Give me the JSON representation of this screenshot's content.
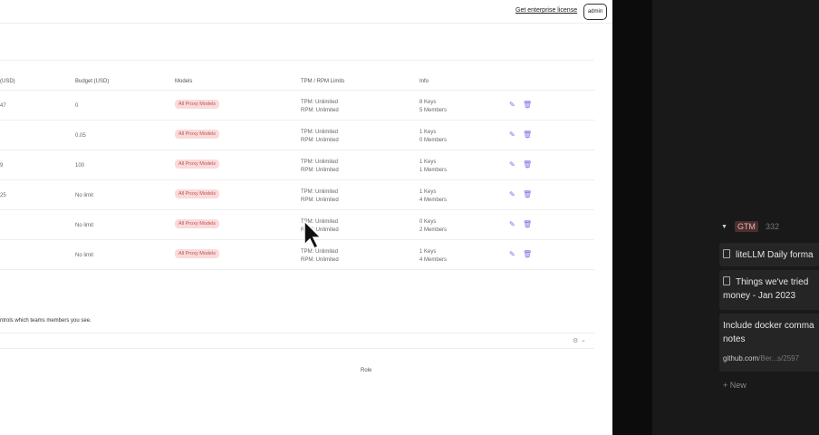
{
  "header": {
    "enterprise_link": "Get enterprise license",
    "user_badge": "admin"
  },
  "table": {
    "headers": [
      "(USD)",
      "Budget (USD)",
      "Models",
      "TPM / RPM Limits",
      "Info"
    ],
    "rows": [
      {
        "spend": "47",
        "budget": "0",
        "models": "All Proxy Models",
        "tpm": "TPM: Unlimited",
        "rpm": "RPM: Unlimited",
        "keys": "8 Keys",
        "members": "5 Members"
      },
      {
        "spend": "",
        "budget": "0.05",
        "models": "All Proxy Models",
        "tpm": "TPM: Unlimited",
        "rpm": "RPM: Unlimited",
        "keys": "1 Keys",
        "members": "0 Members"
      },
      {
        "spend": "9",
        "budget": "100",
        "models": "All Proxy Models",
        "tpm": "TPM: Unlimited",
        "rpm": "RPM: Unlimited",
        "keys": "1 Keys",
        "members": "1 Members"
      },
      {
        "spend": "25",
        "budget": "No limit",
        "models": "All Proxy Models",
        "tpm": "TPM: Unlimited",
        "rpm": "RPM: Unlimited",
        "keys": "1 Keys",
        "members": "4 Members"
      },
      {
        "spend": "",
        "budget": "No limit",
        "models": "All Proxy Models",
        "tpm": "TPM: Unlimited",
        "rpm": "RPM: Unlimited",
        "keys": "0 Keys",
        "members": "2 Members"
      },
      {
        "spend": "",
        "budget": "No limit",
        "models": "All Proxy Models",
        "tpm": "TPM: Unlimited",
        "rpm": "RPM: Unlimited",
        "keys": "1 Keys",
        "members": "4 Members"
      }
    ]
  },
  "members": {
    "note": "ntrols which teams members you see.",
    "role_header": "Role"
  },
  "sidebar": {
    "group_tag": "GTM",
    "group_count": "332",
    "cards": [
      "liteLLM Daily forma",
      "Things we've tried",
      "money - Jan 2023",
      "Include docker comma",
      "notes"
    ],
    "link_domain": "github.com",
    "link_path": "/Ber...s/2597",
    "new_label": "+ New"
  },
  "colors": {
    "accent": "#7b6ee6",
    "pill_bg": "#fbdada",
    "dark_bg": "#191919"
  }
}
